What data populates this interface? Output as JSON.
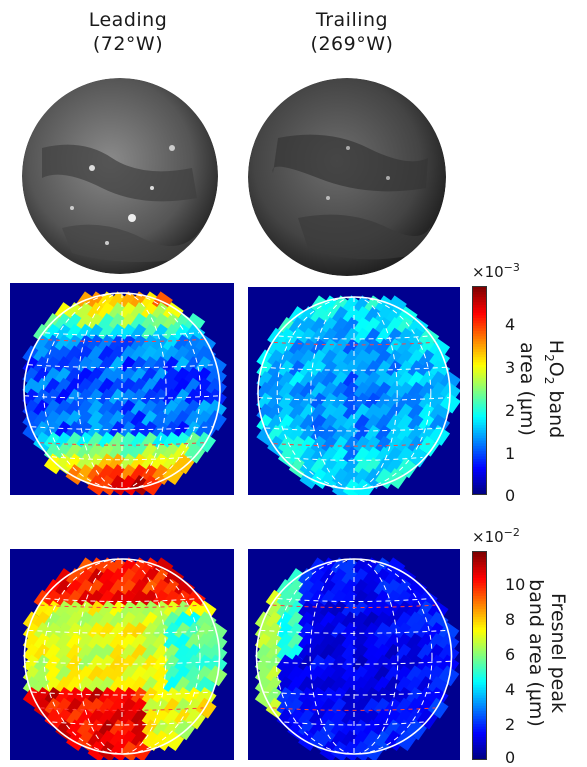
{
  "columns": [
    {
      "name": "Leading",
      "longitude": "(72°W)"
    },
    {
      "name": "Trailing",
      "longitude": "(269°W)"
    }
  ],
  "colorbars": [
    {
      "exponent_base": "×10",
      "exponent_power": "−3",
      "label_prefix": "H",
      "label_sub1": "2",
      "label_mid": "O",
      "label_sub2": "2",
      "label_suffix": " band",
      "label_line2": "area (µm)",
      "ticks": [
        "4",
        "3",
        "2",
        "1",
        "0"
      ]
    },
    {
      "exponent_base": "×10",
      "exponent_power": "−2",
      "label_line1": "Fresnel peak",
      "label_line2": "band area (µm)",
      "ticks": [
        "10",
        "8",
        "6",
        "4",
        "2",
        "0"
      ]
    }
  ],
  "colormap": "jet",
  "colors": {
    "background": "#00008f",
    "grid": "#ffffff",
    "latitude_line": "#ff4040"
  }
}
